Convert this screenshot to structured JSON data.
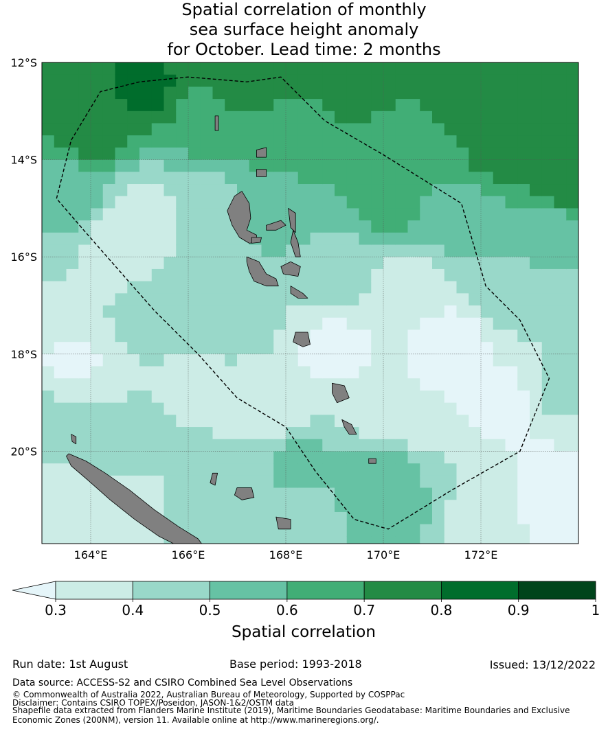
{
  "title": {
    "line1": "Spatial correlation of monthly",
    "line2": "sea surface height anomaly",
    "line3": "for October. Lead time: 2 months"
  },
  "map": {
    "lon_range": [
      163.0,
      174.0
    ],
    "lat_range": [
      -21.9,
      -12.0
    ],
    "lat_ticks": [
      {
        "value": -12,
        "label": "12°S"
      },
      {
        "value": -14,
        "label": "14°S"
      },
      {
        "value": -16,
        "label": "16°S"
      },
      {
        "value": -18,
        "label": "18°S"
      },
      {
        "value": -20,
        "label": "20°S"
      }
    ],
    "lon_ticks": [
      {
        "value": 164,
        "label": "164°E"
      },
      {
        "value": 166,
        "label": "166°E"
      },
      {
        "value": 168,
        "label": "168°E"
      },
      {
        "value": 170,
        "label": "170°E"
      },
      {
        "value": 172,
        "label": "172°E"
      }
    ],
    "land_color": "#808080",
    "eez_boundary_style": "dashed black"
  },
  "colorbar": {
    "label": "Spatial correlation",
    "ticks": [
      "0.3",
      "0.4",
      "0.5",
      "0.6",
      "0.7",
      "0.8",
      "0.9",
      "1"
    ],
    "colors": [
      "#e5f5f9",
      "#ccece6",
      "#99d8c9",
      "#66c2a4",
      "#41ae76",
      "#238b45",
      "#006d2c",
      "#00441b"
    ],
    "extend": "min"
  },
  "footer": {
    "run_date": "Run date: 1st August",
    "base_period": "Base period: 1993-2018",
    "issued": "Issued: 13/12/2022",
    "data_source": "Data source: ACCESS-S2 and CSIRO Combined Sea Level Observations",
    "copyright": "© Commonwealth of Australia 2022, Australian Bureau of Meteorology, Supported by COSPPac",
    "disclaimer": "Disclaimer: Contains CSIRO TOPEX/Poseidon, JASON-1&2/OSTM data",
    "shapefile_1": "Shapefile data extracted from Flanders Marine Institute (2019), Maritime Boundaries Geodatabase: Maritime Boundaries and Exclusive",
    "shapefile_2": "Economic Zones (200NM), version 11. Available online at http://www.marineregions.org/."
  }
}
